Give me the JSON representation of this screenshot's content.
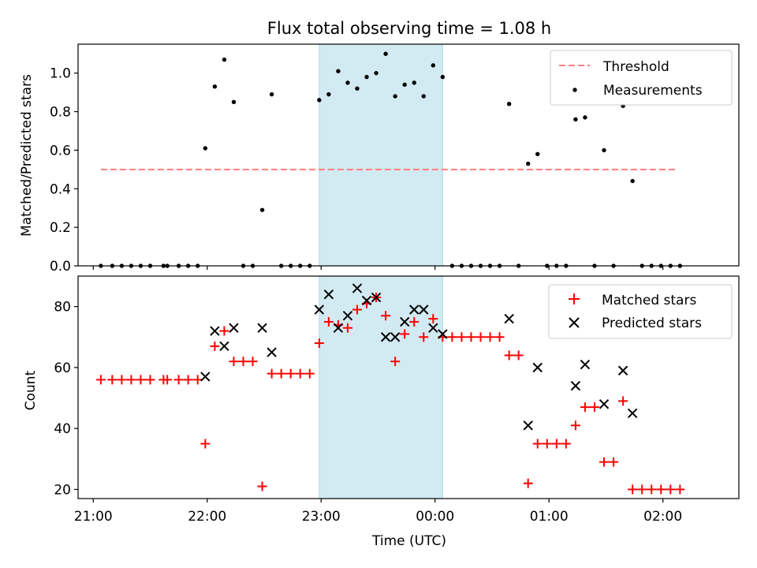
{
  "title": "Flux total observing time = 1.08 h",
  "colors": {
    "threshold": "#ff7f7f",
    "measurement": "#000000",
    "matched": "#ff0000",
    "predicted": "#000000",
    "span": "#add8e6"
  },
  "chart_data": [
    {
      "type": "scatter",
      "ylabel": "Matched/Predicted stars",
      "ylim": [
        0,
        1.15
      ],
      "xlim": [
        "20:52",
        "02:40"
      ],
      "yticks": [
        0.0,
        0.2,
        0.4,
        0.6,
        0.8,
        1.0
      ],
      "yticklabels": [
        "0.0",
        "0.2",
        "0.4",
        "0.6",
        "0.8",
        "1.0"
      ],
      "legend_position": "top-right",
      "highlight_span": [
        "22:59",
        "00:04"
      ],
      "threshold": {
        "name": "Threshold",
        "value": 0.5,
        "x_range": [
          "21:04",
          "02:07"
        ]
      },
      "measurements": {
        "name": "Measurements",
        "points": [
          [
            "21:04",
            0.0
          ],
          [
            "21:10",
            0.0
          ],
          [
            "21:15",
            0.0
          ],
          [
            "21:20",
            0.0
          ],
          [
            "21:25",
            0.0
          ],
          [
            "21:30",
            0.0
          ],
          [
            "21:37",
            0.0
          ],
          [
            "21:39",
            0.0
          ],
          [
            "21:45",
            0.0
          ],
          [
            "21:50",
            0.0
          ],
          [
            "21:55",
            0.0
          ],
          [
            "21:59",
            0.61
          ],
          [
            "22:04",
            0.93
          ],
          [
            "22:09",
            1.07
          ],
          [
            "22:14",
            0.85
          ],
          [
            "22:19",
            0.0
          ],
          [
            "22:24",
            0.0
          ],
          [
            "22:29",
            0.29
          ],
          [
            "22:34",
            0.89
          ],
          [
            "22:39",
            0.0
          ],
          [
            "22:44",
            0.0
          ],
          [
            "22:49",
            0.0
          ],
          [
            "22:54",
            0.0
          ],
          [
            "22:59",
            0.86
          ],
          [
            "23:04",
            0.89
          ],
          [
            "23:09",
            1.01
          ],
          [
            "23:14",
            0.95
          ],
          [
            "23:19",
            0.92
          ],
          [
            "23:24",
            0.98
          ],
          [
            "23:29",
            1.0
          ],
          [
            "23:34",
            1.1
          ],
          [
            "23:39",
            0.88
          ],
          [
            "23:44",
            0.94
          ],
          [
            "23:49",
            0.95
          ],
          [
            "23:54",
            0.88
          ],
          [
            "23:59",
            1.04
          ],
          [
            "00:04",
            0.98
          ],
          [
            "00:09",
            0.0
          ],
          [
            "00:14",
            0.0
          ],
          [
            "00:19",
            0.0
          ],
          [
            "00:24",
            0.0
          ],
          [
            "00:29",
            0.0
          ],
          [
            "00:34",
            0.0
          ],
          [
            "00:39",
            0.84
          ],
          [
            "00:44",
            0.0
          ],
          [
            "00:49",
            0.53
          ],
          [
            "00:54",
            0.58
          ],
          [
            "00:59",
            0.0
          ],
          [
            "01:04",
            0.0
          ],
          [
            "01:09",
            0.0
          ],
          [
            "01:14",
            0.76
          ],
          [
            "01:19",
            0.77
          ],
          [
            "01:24",
            0.0
          ],
          [
            "01:29",
            0.6
          ],
          [
            "01:34",
            0.0
          ],
          [
            "01:39",
            0.83
          ],
          [
            "01:44",
            0.44
          ],
          [
            "01:49",
            0.0
          ],
          [
            "01:54",
            0.0
          ],
          [
            "01:59",
            0.0
          ],
          [
            "02:04",
            0.0
          ],
          [
            "02:09",
            0.0
          ]
        ]
      }
    },
    {
      "type": "scatter",
      "xlabel": "Time (UTC)",
      "ylabel": "Count",
      "ylim": [
        17,
        90
      ],
      "xlim": [
        "20:52",
        "02:40"
      ],
      "yticks": [
        20,
        40,
        60,
        80
      ],
      "yticklabels": [
        "20",
        "40",
        "60",
        "80"
      ],
      "xticks": [
        "21:00",
        "22:00",
        "23:00",
        "00:00",
        "01:00",
        "02:00"
      ],
      "xticklabels": [
        "21:00",
        "22:00",
        "23:00",
        "00:00",
        "01:00",
        "02:00"
      ],
      "legend_position": "top-right",
      "highlight_span": [
        "22:59",
        "00:04"
      ],
      "series": [
        {
          "name": "Matched stars",
          "marker": "plus",
          "points": [
            [
              "21:04",
              56
            ],
            [
              "21:10",
              56
            ],
            [
              "21:15",
              56
            ],
            [
              "21:20",
              56
            ],
            [
              "21:25",
              56
            ],
            [
              "21:30",
              56
            ],
            [
              "21:37",
              56
            ],
            [
              "21:39",
              56
            ],
            [
              "21:45",
              56
            ],
            [
              "21:50",
              56
            ],
            [
              "21:55",
              56
            ],
            [
              "21:59",
              35
            ],
            [
              "22:04",
              67
            ],
            [
              "22:09",
              72
            ],
            [
              "22:14",
              62
            ],
            [
              "22:19",
              62
            ],
            [
              "22:24",
              62
            ],
            [
              "22:29",
              21
            ],
            [
              "22:34",
              58
            ],
            [
              "22:39",
              58
            ],
            [
              "22:44",
              58
            ],
            [
              "22:49",
              58
            ],
            [
              "22:54",
              58
            ],
            [
              "22:59",
              68
            ],
            [
              "23:04",
              75
            ],
            [
              "23:09",
              74
            ],
            [
              "23:14",
              73
            ],
            [
              "23:19",
              79
            ],
            [
              "23:24",
              81
            ],
            [
              "23:29",
              83
            ],
            [
              "23:34",
              77
            ],
            [
              "23:39",
              62
            ],
            [
              "23:44",
              71
            ],
            [
              "23:49",
              75
            ],
            [
              "23:54",
              70
            ],
            [
              "23:59",
              76
            ],
            [
              "00:04",
              70
            ],
            [
              "00:09",
              70
            ],
            [
              "00:14",
              70
            ],
            [
              "00:19",
              70
            ],
            [
              "00:24",
              70
            ],
            [
              "00:29",
              70
            ],
            [
              "00:34",
              70
            ],
            [
              "00:39",
              64
            ],
            [
              "00:44",
              64
            ],
            [
              "00:49",
              22
            ],
            [
              "00:54",
              35
            ],
            [
              "00:59",
              35
            ],
            [
              "01:04",
              35
            ],
            [
              "01:09",
              35
            ],
            [
              "01:14",
              41
            ],
            [
              "01:19",
              47
            ],
            [
              "01:24",
              47
            ],
            [
              "01:29",
              29
            ],
            [
              "01:34",
              29
            ],
            [
              "01:39",
              49
            ],
            [
              "01:44",
              20
            ],
            [
              "01:49",
              20
            ],
            [
              "01:54",
              20
            ],
            [
              "01:59",
              20
            ],
            [
              "02:04",
              20
            ],
            [
              "02:09",
              20
            ]
          ]
        },
        {
          "name": "Predicted stars",
          "marker": "x",
          "points": [
            [
              "21:59",
              57
            ],
            [
              "22:04",
              72
            ],
            [
              "22:09",
              67
            ],
            [
              "22:14",
              73
            ],
            [
              "22:29",
              73
            ],
            [
              "22:34",
              65
            ],
            [
              "22:59",
              79
            ],
            [
              "23:04",
              84
            ],
            [
              "23:09",
              73
            ],
            [
              "23:14",
              77
            ],
            [
              "23:19",
              86
            ],
            [
              "23:24",
              82
            ],
            [
              "23:29",
              83
            ],
            [
              "23:34",
              70
            ],
            [
              "23:39",
              70
            ],
            [
              "23:44",
              75
            ],
            [
              "23:49",
              79
            ],
            [
              "23:54",
              79
            ],
            [
              "23:59",
              73
            ],
            [
              "00:04",
              71
            ],
            [
              "00:39",
              76
            ],
            [
              "00:49",
              41
            ],
            [
              "00:54",
              60
            ],
            [
              "01:14",
              54
            ],
            [
              "01:19",
              61
            ],
            [
              "01:29",
              48
            ],
            [
              "01:39",
              59
            ],
            [
              "01:44",
              45
            ]
          ]
        }
      ]
    }
  ]
}
